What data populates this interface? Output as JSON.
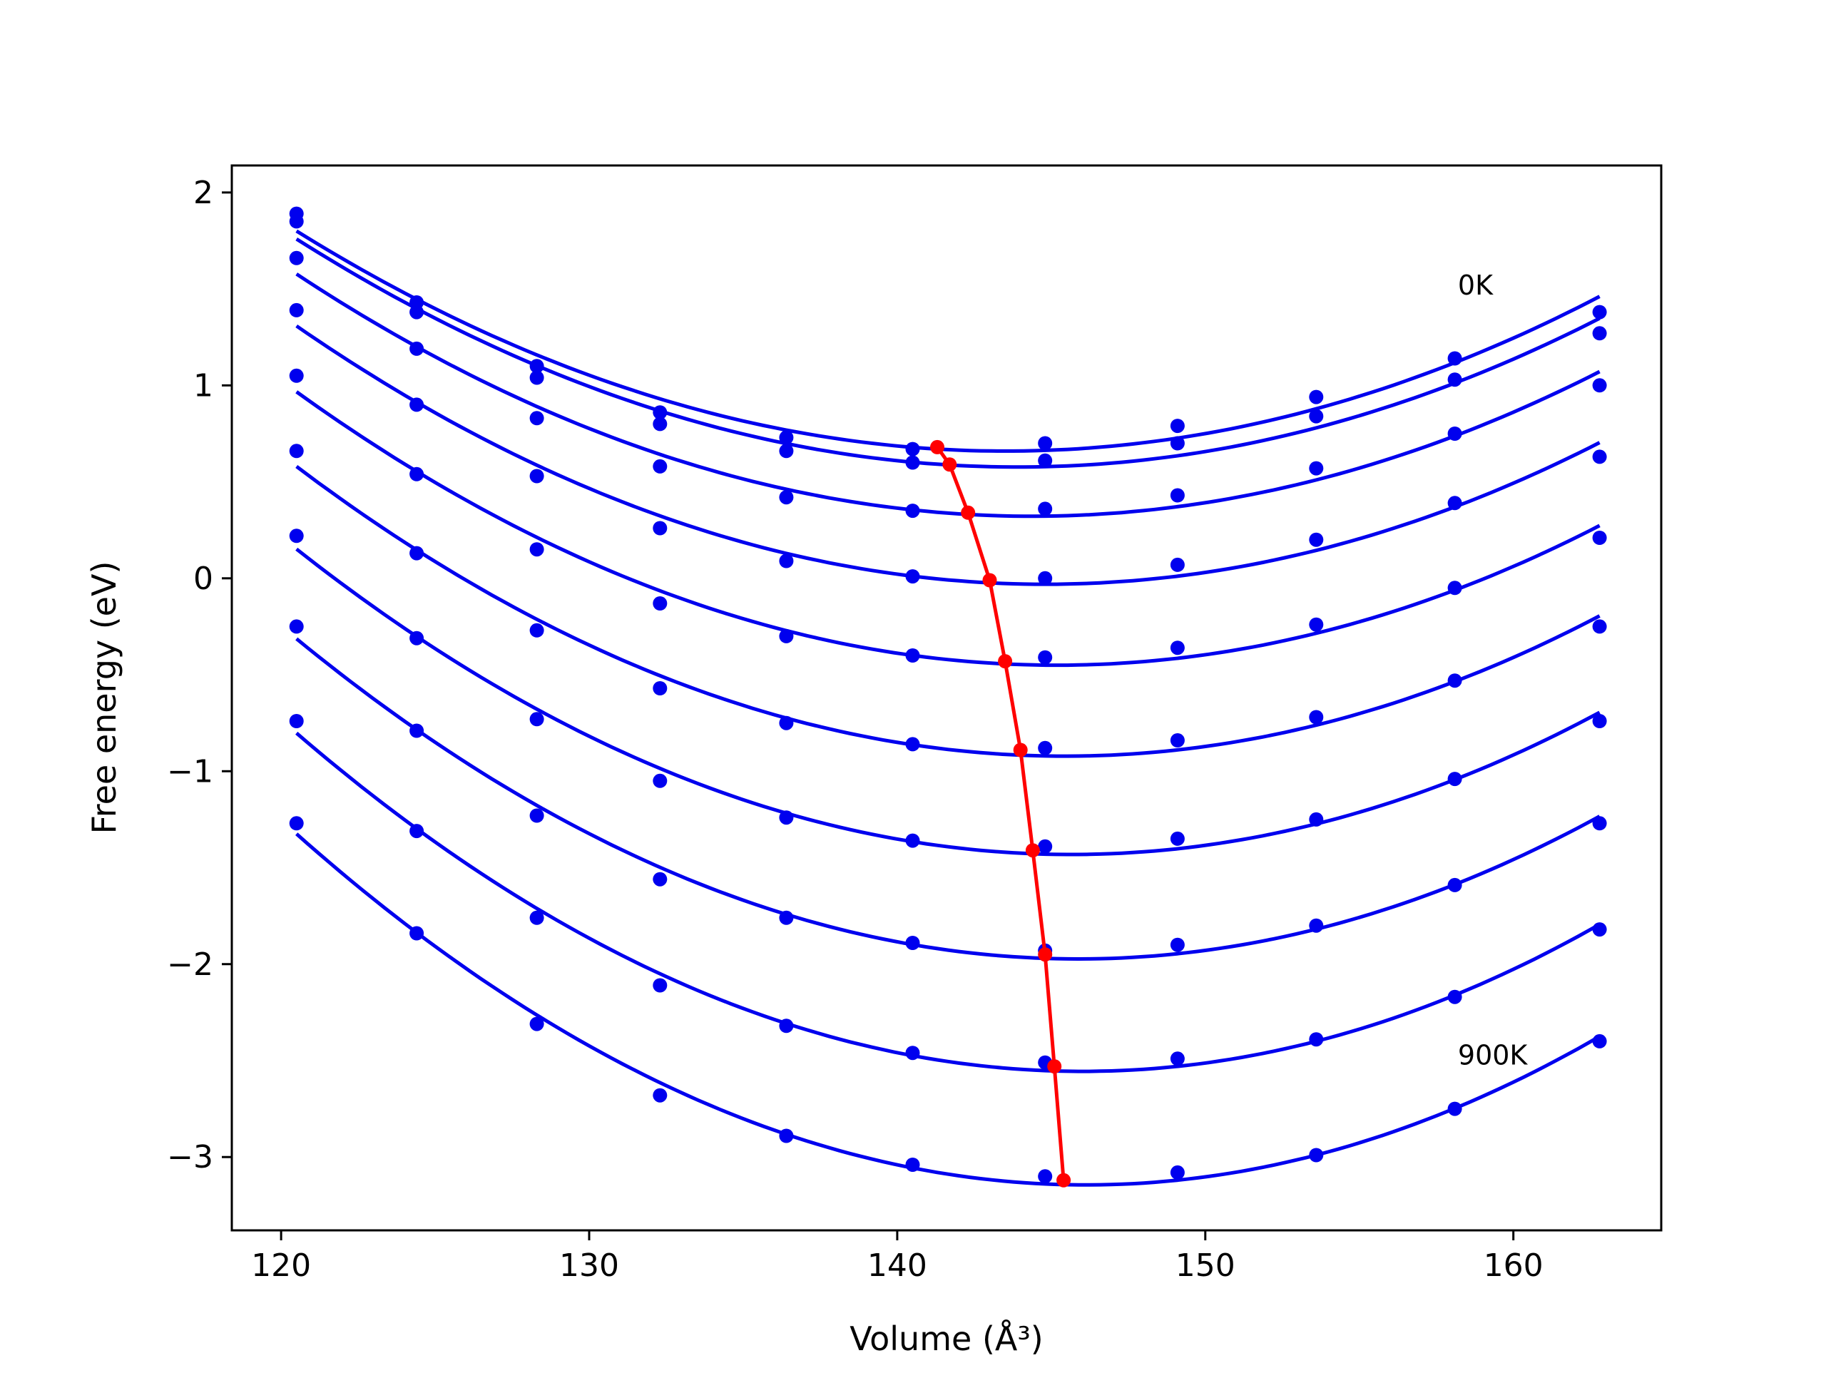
{
  "chart_data": {
    "type": "line",
    "xlabel": "Volume (Å³)",
    "ylabel": "Free energy (eV)",
    "xlim": [
      118.4,
      164.8
    ],
    "ylim": [
      -3.38,
      2.14
    ],
    "x_ticks": [
      120,
      130,
      140,
      150,
      160
    ],
    "y_ticks": [
      -3,
      -2,
      -1,
      0,
      1,
      2
    ],
    "y_tick_labels": [
      "−3",
      "−2",
      "−1",
      "0",
      "1",
      "2"
    ],
    "grid": false,
    "annotations": [
      {
        "text": "0K",
        "x": 158.2,
        "y": 1.47
      },
      {
        "text": "900K",
        "x": 158.2,
        "y": -2.52
      }
    ],
    "curve_color": "#0000ee",
    "min_line_color": "#ff0000",
    "volumes": [
      120.5,
      124.4,
      128.3,
      132.3,
      136.4,
      140.5,
      144.8,
      149.1,
      153.6,
      158.1,
      162.8
    ],
    "series": [
      {
        "energies": [
          1.89,
          1.43,
          1.1,
          0.86,
          0.73,
          0.67,
          0.7,
          0.79,
          0.94,
          1.14,
          1.38
        ]
      },
      {
        "energies": [
          1.85,
          1.38,
          1.04,
          0.8,
          0.66,
          0.6,
          0.61,
          0.7,
          0.84,
          1.03,
          1.27
        ]
      },
      {
        "energies": [
          1.66,
          1.19,
          0.83,
          0.58,
          0.42,
          0.35,
          0.36,
          0.43,
          0.57,
          0.75,
          1.0
        ]
      },
      {
        "energies": [
          1.39,
          0.9,
          0.53,
          0.26,
          0.09,
          0.01,
          0.0,
          0.07,
          0.2,
          0.39,
          0.63
        ]
      },
      {
        "energies": [
          1.05,
          0.54,
          0.15,
          -0.13,
          -0.3,
          -0.4,
          -0.41,
          -0.36,
          -0.24,
          -0.05,
          0.21
        ]
      },
      {
        "energies": [
          0.66,
          0.13,
          -0.27,
          -0.57,
          -0.75,
          -0.86,
          -0.88,
          -0.84,
          -0.72,
          -0.53,
          -0.25
        ]
      },
      {
        "energies": [
          0.22,
          -0.31,
          -0.73,
          -1.05,
          -1.24,
          -1.36,
          -1.39,
          -1.35,
          -1.25,
          -1.04,
          -0.74
        ]
      },
      {
        "energies": [
          -0.25,
          -0.79,
          -1.23,
          -1.56,
          -1.76,
          -1.89,
          -1.93,
          -1.9,
          -1.8,
          -1.59,
          -1.27
        ]
      },
      {
        "energies": [
          -0.74,
          -1.31,
          -1.76,
          -2.11,
          -2.32,
          -2.46,
          -2.51,
          -2.49,
          -2.39,
          -2.17,
          -1.82
        ]
      },
      {
        "energies": [
          -1.27,
          -1.84,
          -2.31,
          -2.68,
          -2.89,
          -3.04,
          -3.1,
          -3.08,
          -2.99,
          -2.75,
          -2.4
        ]
      }
    ],
    "minimum_line": {
      "x": [
        141.3,
        141.7,
        142.3,
        143.0,
        143.5,
        144.0,
        144.4,
        144.8,
        145.1,
        145.4
      ],
      "y": [
        0.68,
        0.59,
        0.34,
        -0.01,
        -0.43,
        -0.89,
        -1.41,
        -1.95,
        -2.53,
        -3.12
      ]
    }
  }
}
